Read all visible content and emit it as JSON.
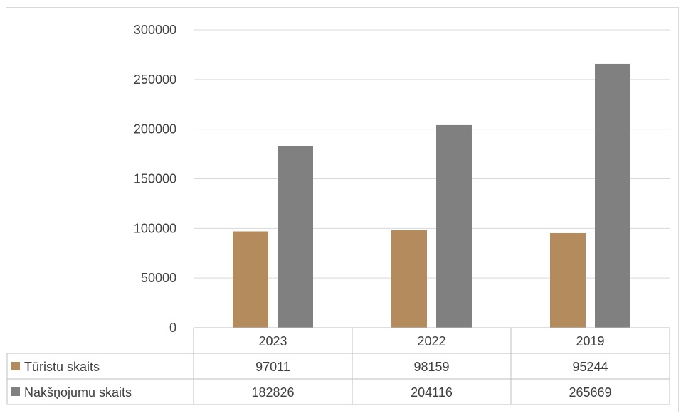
{
  "chart_data": {
    "type": "bar",
    "categories": [
      "2023",
      "2022",
      "2019"
    ],
    "series": [
      {
        "name": "Tūristu skaits",
        "values": [
          97011,
          98159,
          95244
        ],
        "color": "#b38b5d"
      },
      {
        "name": "Nakšņojumu skaits",
        "values": [
          182826,
          204116,
          265669
        ],
        "color": "#808080"
      }
    ],
    "ylim": [
      0,
      300000
    ],
    "yticks": [
      0,
      50000,
      100000,
      150000,
      200000,
      250000,
      300000
    ],
    "grid": true,
    "legend": "data-table-below",
    "title": "",
    "xlabel": "",
    "ylabel": ""
  }
}
